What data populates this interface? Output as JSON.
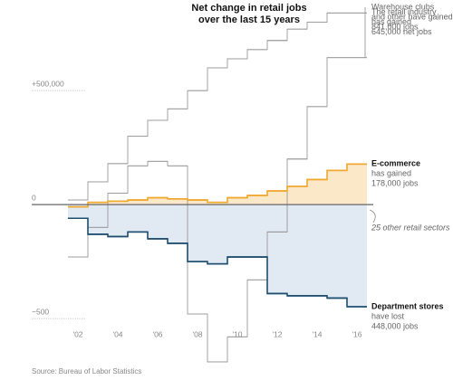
{
  "chart_data": {
    "type": "step-line",
    "title": [
      "Net change in retail jobs",
      "over the last 15 years"
    ],
    "x": [
      2002,
      2003,
      2004,
      2005,
      2006,
      2007,
      2008,
      2009,
      2010,
      2011,
      2012,
      2013,
      2014,
      2015,
      2016
    ],
    "xlim": [
      2001,
      2017
    ],
    "xticks": [
      {
        "value": 2002,
        "label": "'02"
      },
      {
        "value": 2004,
        "label": "'04"
      },
      {
        "value": 2006,
        "label": "'06"
      },
      {
        "value": 2008,
        "label": "'08"
      },
      {
        "value": 2010,
        "label": "'10"
      },
      {
        "value": 2012,
        "label": "'12"
      },
      {
        "value": 2014,
        "label": "'14"
      },
      {
        "value": 2016,
        "label": "'16"
      }
    ],
    "ylim": [
      -700000,
      850000
    ],
    "yticks": [
      {
        "value": 500000,
        "label": "+500,000"
      },
      0,
      {
        "value": -500000,
        "label": "−500"
      }
    ],
    "series": [
      {
        "label_lines": [
          "Warehouse clubs",
          "and other have gained",
          "841,000 jobs"
        ],
        "color": "#9a9a9a",
        "fill": null,
        "values": [
          20000,
          100000,
          180000,
          300000,
          370000,
          420000,
          500000,
          600000,
          640000,
          680000,
          720000,
          770000,
          800000,
          841000,
          841000
        ]
      },
      {
        "label_lines": [
          "The retail industry",
          "has gained",
          "645,000 net jobs"
        ],
        "color": "#9a9a9a",
        "fill": null,
        "values": [
          -230000,
          -100000,
          50000,
          170000,
          190000,
          170000,
          -480000,
          -690000,
          -580000,
          -330000,
          -120000,
          200000,
          430000,
          645000,
          645000
        ]
      },
      {
        "name": "E-commerce",
        "label_lines": [
          "has gained",
          "178,000 jobs"
        ],
        "color": "#f0a830",
        "fill": "#fbe8c8",
        "values": [
          -10000,
          10000,
          15000,
          20000,
          30000,
          25000,
          20000,
          10000,
          30000,
          40000,
          60000,
          80000,
          110000,
          150000,
          178000
        ]
      },
      {
        "name": "Department stores",
        "label_lines": [
          "have lost",
          "448,000 jobs"
        ],
        "color": "#1f4e6e",
        "fill": "#e1e9f3",
        "values": [
          -60000,
          -130000,
          -140000,
          -120000,
          -150000,
          -170000,
          -250000,
          -260000,
          -230000,
          -230000,
          -390000,
          -400000,
          -400000,
          -410000,
          -448000
        ]
      }
    ],
    "annotations": [
      "25 other retail sectors"
    ],
    "source": "Source: Bureau of Labor Statistics"
  }
}
